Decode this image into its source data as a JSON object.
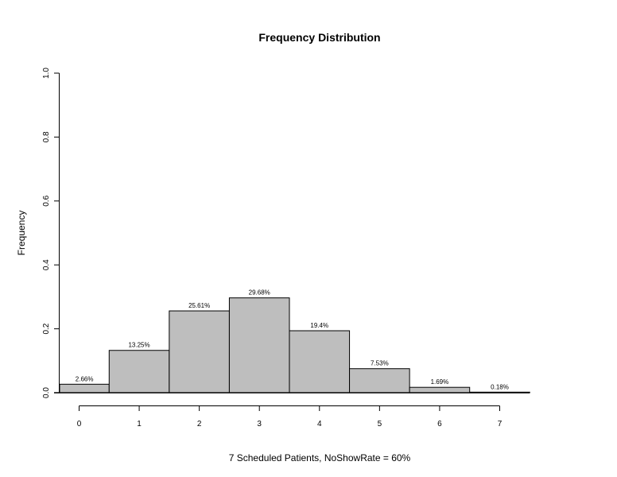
{
  "chart_data": {
    "type": "bar",
    "title": "Frequency Distribution",
    "xlabel": "7 Scheduled Patients,  NoShowRate = 60%",
    "ylabel": "Frequency",
    "categories": [
      "0",
      "1",
      "2",
      "3",
      "4",
      "5",
      "6",
      "7"
    ],
    "values": [
      0.0266,
      0.1325,
      0.2561,
      0.2968,
      0.194,
      0.0753,
      0.0169,
      0.0018
    ],
    "data_labels": [
      "2.66%",
      "13.25%",
      "25.61%",
      "29.68%",
      "19.4%",
      "7.53%",
      "1.69%",
      "0.18%"
    ],
    "ylim": [
      0,
      1.0
    ],
    "yticks": [
      "0.0",
      "0.2",
      "0.4",
      "0.6",
      "0.8",
      "1.0"
    ],
    "grid": false,
    "bar_color": "#bebebe",
    "edge_color": "#000000"
  }
}
